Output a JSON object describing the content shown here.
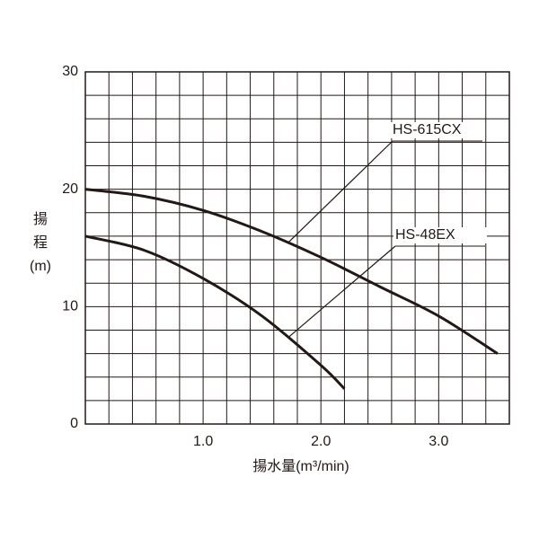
{
  "chart_data": {
    "type": "line",
    "x_label": "揚水量(m³/min)",
    "y_label": [
      "揚",
      "程",
      "(m)"
    ],
    "xlim": [
      0,
      3.6
    ],
    "ylim": [
      0,
      30
    ],
    "xticks": [
      {
        "value": 1,
        "label": "1.0"
      },
      {
        "value": 2,
        "label": "2.0"
      },
      {
        "value": 3,
        "label": "3.0"
      }
    ],
    "yticks": [
      0,
      10,
      20,
      30
    ],
    "xgrid": [
      0,
      0.2,
      0.4,
      0.6,
      0.8,
      1,
      1.2,
      1.4,
      1.6,
      1.8,
      2,
      2.2,
      2.4,
      2.6,
      2.8,
      3,
      3.2,
      3.4,
      3.6
    ],
    "ygrid": [
      0,
      2,
      4,
      6,
      8,
      10,
      12,
      14,
      16,
      18,
      20,
      22,
      24,
      26,
      28,
      30
    ],
    "grid": true,
    "series": [
      {
        "name": "HS-615CX",
        "color": "#231815",
        "x": [
          0,
          0.5,
          1.0,
          1.5,
          2.0,
          2.5,
          3.0,
          3.5
        ],
        "values": [
          20,
          19.4,
          18.2,
          16.4,
          14.2,
          11.7,
          9.2,
          6.0
        ]
      },
      {
        "name": "HS-48EX",
        "color": "#231815",
        "x": [
          0,
          0.5,
          1.0,
          1.5,
          2.0,
          2.2
        ],
        "values": [
          16,
          14.8,
          12.4,
          9.2,
          5.0,
          3.0
        ]
      }
    ]
  }
}
